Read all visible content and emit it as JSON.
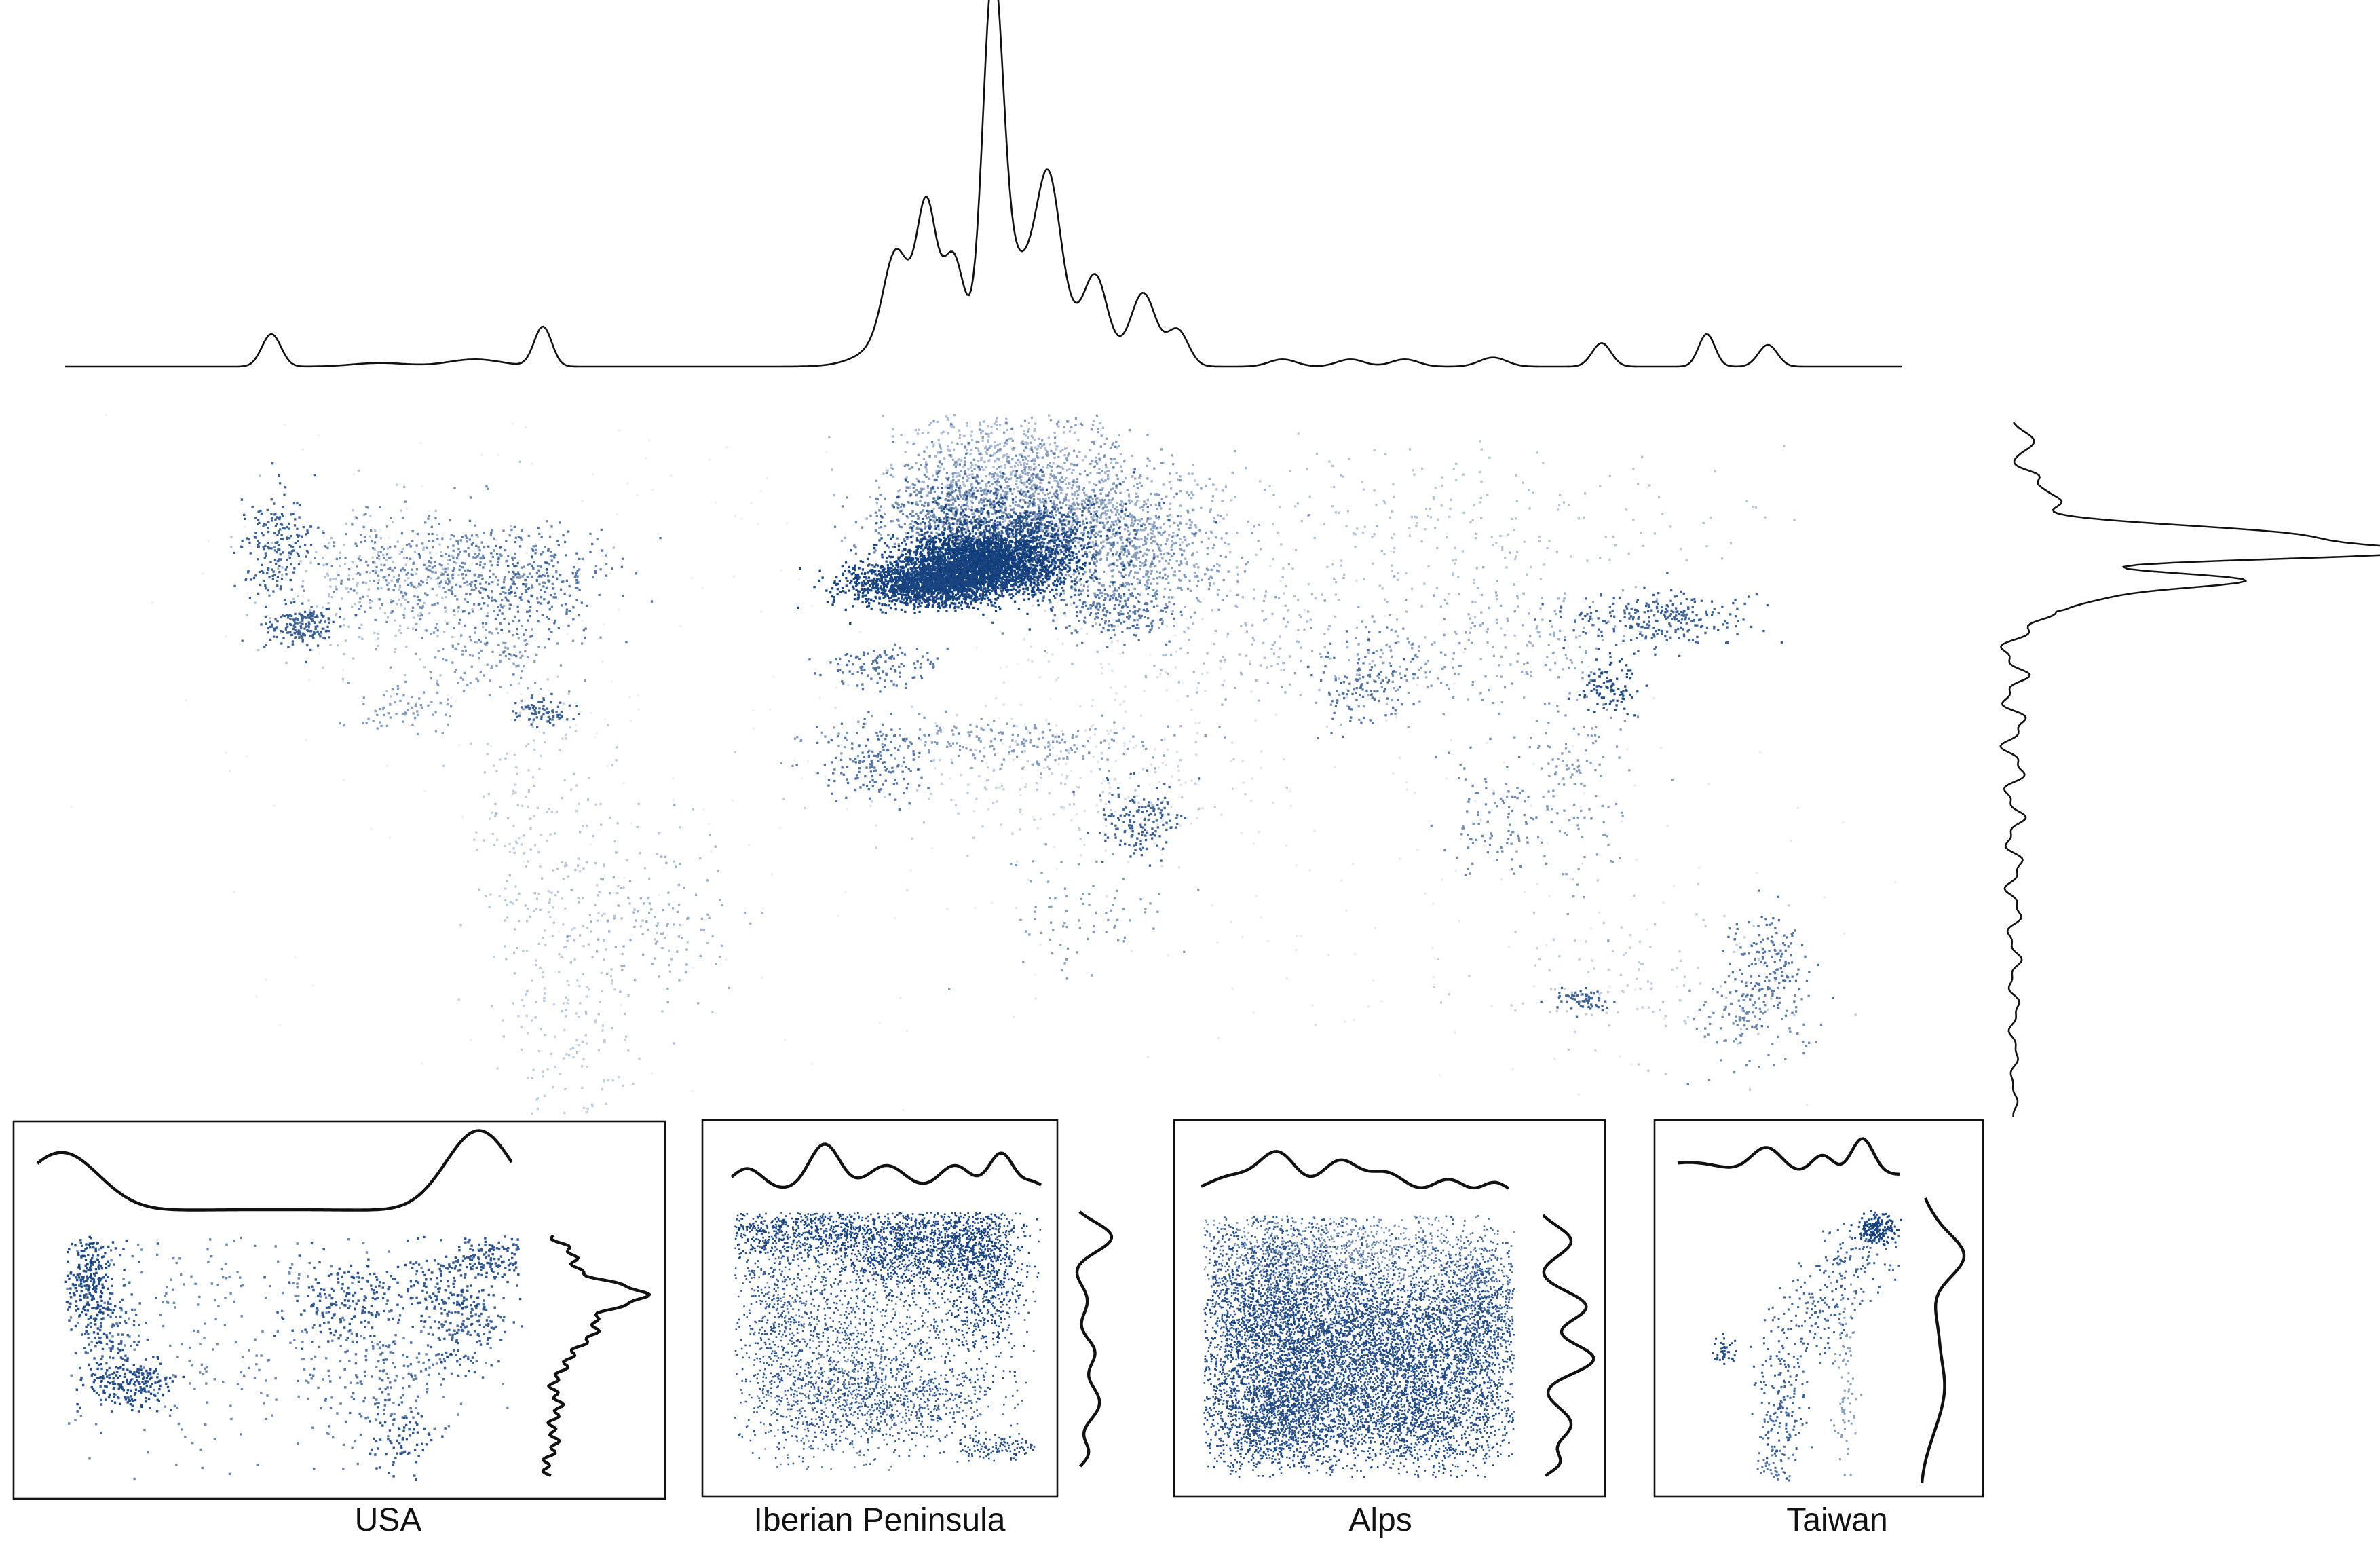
{
  "colors": {
    "dot": "#0d3a78",
    "line": "#111111",
    "frame": "#111111",
    "background": "#ffffff"
  },
  "insets": [
    {
      "id": "usa",
      "label": "USA"
    },
    {
      "id": "iberia",
      "label": "Iberian Peninsula"
    },
    {
      "id": "alps",
      "label": "Alps"
    },
    {
      "id": "taiwan",
      "label": "Taiwan"
    }
  ]
}
